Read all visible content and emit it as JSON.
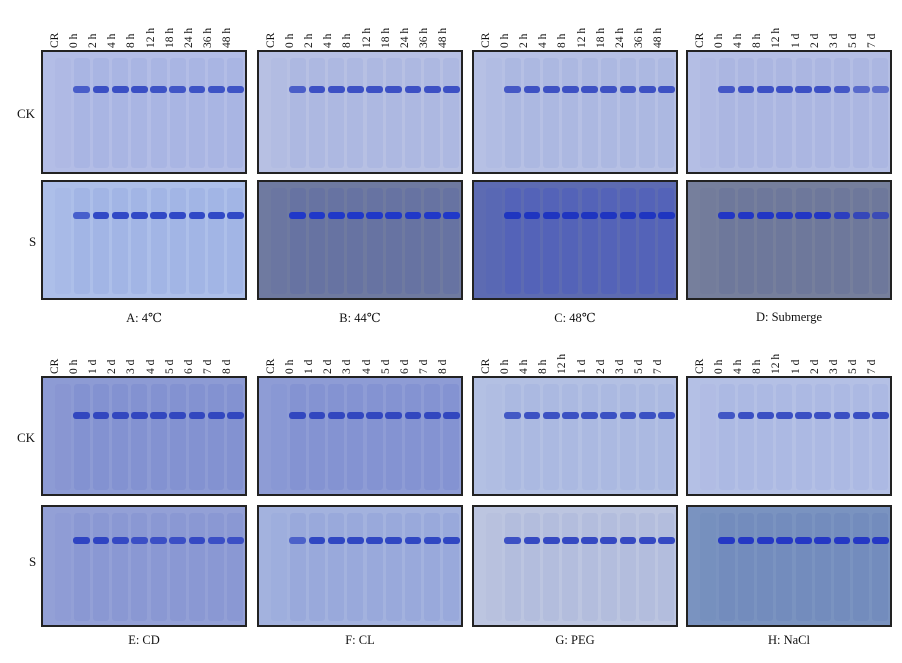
{
  "row_labels": {
    "ck": "CK",
    "s": "S"
  },
  "panels": [
    {
      "id": "A",
      "caption": "A: 4℃",
      "lanes": [
        "CR",
        "0 h",
        "2 h",
        "4 h",
        "8 h",
        "12 h",
        "18 h",
        "24 h",
        "36 h",
        "48 h"
      ],
      "ck": {
        "bg": "#b3bde6",
        "band": "#3a4fc4",
        "smear": "#98a6de",
        "band_strength": [
          0,
          0.8,
          1,
          1,
          1,
          0.95,
          0.9,
          0.95,
          0.95,
          0.95
        ]
      },
      "s": {
        "bg": "#adbfe9",
        "band": "#3149c6",
        "smear": "#8fa3e0",
        "band_strength": [
          0,
          0.7,
          1,
          1,
          1,
          1,
          1,
          1,
          1,
          1
        ]
      }
    },
    {
      "id": "B",
      "caption": "B: 44℃",
      "lanes": [
        "CR",
        "0 h",
        "2 h",
        "4 h",
        "8 h",
        "12 h",
        "18 h",
        "24 h",
        "36 h",
        "48 h"
      ],
      "ck": {
        "bg": "#b7c0e3",
        "band": "#3c50c4",
        "smear": "#9ba8dc",
        "band_strength": [
          0,
          0.8,
          1,
          1,
          1,
          1,
          1,
          1,
          1,
          1
        ]
      },
      "s": {
        "bg": "#6f7aa0",
        "band": "#2038c8",
        "smear": "#5968a6",
        "band_strength": [
          0,
          1,
          1,
          1,
          1,
          1,
          1,
          1,
          1,
          1
        ]
      }
    },
    {
      "id": "C",
      "caption": "C: 48℃",
      "lanes": [
        "CR",
        "0 h",
        "2 h",
        "4 h",
        "8 h",
        "12 h",
        "18 h",
        "24 h",
        "36 h",
        "48 h"
      ],
      "ck": {
        "bg": "#b6c0e4",
        "band": "#3d51c3",
        "smear": "#9aa8dd",
        "band_strength": [
          0,
          0.9,
          1,
          1,
          1,
          1,
          1,
          1,
          1,
          1
        ]
      },
      "s": {
        "bg": "#5d6bb2",
        "band": "#1f35c0",
        "smear": "#4656c4",
        "band_strength": [
          0,
          1,
          1,
          1,
          1,
          1,
          1,
          1,
          1,
          1
        ]
      }
    },
    {
      "id": "D",
      "caption": "D: Submerge",
      "lanes": [
        "CR",
        "0 h",
        "4 h",
        "8 h",
        "12 h",
        "1 d",
        "2 d",
        "3 d",
        "5 d",
        "7 d"
      ],
      "ck": {
        "bg": "#b4bee4",
        "band": "#3c50c4",
        "smear": "#9ca9dd",
        "band_strength": [
          0,
          0.9,
          1,
          1,
          1,
          1,
          1,
          0.9,
          0.6,
          0.5
        ]
      },
      "s": {
        "bg": "#767f9c",
        "band": "#2236c4",
        "smear": "#626c9a",
        "band_strength": [
          0,
          1,
          1,
          1,
          1,
          1,
          1,
          0.8,
          0.6,
          0.5
        ]
      }
    },
    {
      "id": "E",
      "caption": "E: CD",
      "lanes": [
        "CR",
        "0 h",
        "1 d",
        "2 d",
        "3 d",
        "4 d",
        "5 d",
        "6 d",
        "7 d",
        "8 d"
      ],
      "ck": {
        "bg": "#8d9bd4",
        "band": "#3247bf",
        "smear": "#7282cc",
        "band_strength": [
          0,
          1,
          1,
          1,
          1,
          1,
          1,
          1,
          1,
          1
        ]
      },
      "s": {
        "bg": "#93a0d6",
        "band": "#2f44c2",
        "smear": "#7a89cf",
        "band_strength": [
          0,
          1,
          1,
          0.9,
          0.8,
          0.8,
          0.8,
          0.9,
          0.8,
          0.8
        ]
      }
    },
    {
      "id": "F",
      "caption": "F: CL",
      "lanes": [
        "CR",
        "0 h",
        "1 d",
        "2 d",
        "3 d",
        "4 d",
        "5 d",
        "6 d",
        "7 d",
        "8 d"
      ],
      "ck": {
        "bg": "#8e9cd5",
        "band": "#3247bf",
        "smear": "#7484cd",
        "band_strength": [
          0,
          1,
          1,
          1,
          1,
          1,
          1,
          1,
          1,
          1
        ]
      },
      "s": {
        "bg": "#a3b2de",
        "band": "#3047c2",
        "smear": "#8899d6",
        "band_strength": [
          0,
          0.6,
          1,
          1,
          1,
          1,
          1,
          1,
          1,
          1
        ]
      }
    },
    {
      "id": "G",
      "caption": "G: PEG",
      "lanes": [
        "CR",
        "0 h",
        "4 h",
        "8 h",
        "12 h",
        "1 d",
        "2 d",
        "3 d",
        "5 d",
        "7 d"
      ],
      "ck": {
        "bg": "#b3c0e3",
        "band": "#3b51c3",
        "smear": "#9eadde",
        "band_strength": [
          0,
          0.9,
          1,
          1,
          1,
          1,
          1,
          1,
          1,
          1
        ]
      },
      "s": {
        "bg": "#bcc5e0",
        "band": "#3549c2",
        "smear": "#a3aed8",
        "band_strength": [
          0,
          0.9,
          1,
          1,
          1,
          1,
          1,
          1,
          1,
          1
        ]
      }
    },
    {
      "id": "H",
      "caption": "H: NaCl",
      "lanes": [
        "CR",
        "0 h",
        "4 h",
        "8 h",
        "12 h",
        "1 d",
        "2 d",
        "3 d",
        "5 d",
        "7 d"
      ],
      "ck": {
        "bg": "#b4c0e5",
        "band": "#3a4fc3",
        "smear": "#9eabe0",
        "band_strength": [
          0,
          0.9,
          1,
          1,
          1,
          1,
          1,
          1,
          1,
          1
        ]
      },
      "s": {
        "bg": "#7a93c0",
        "band": "#2538c4",
        "smear": "#6781b8",
        "band_strength": [
          0,
          1,
          1,
          1,
          1,
          1,
          1,
          1,
          1,
          1
        ]
      }
    }
  ]
}
